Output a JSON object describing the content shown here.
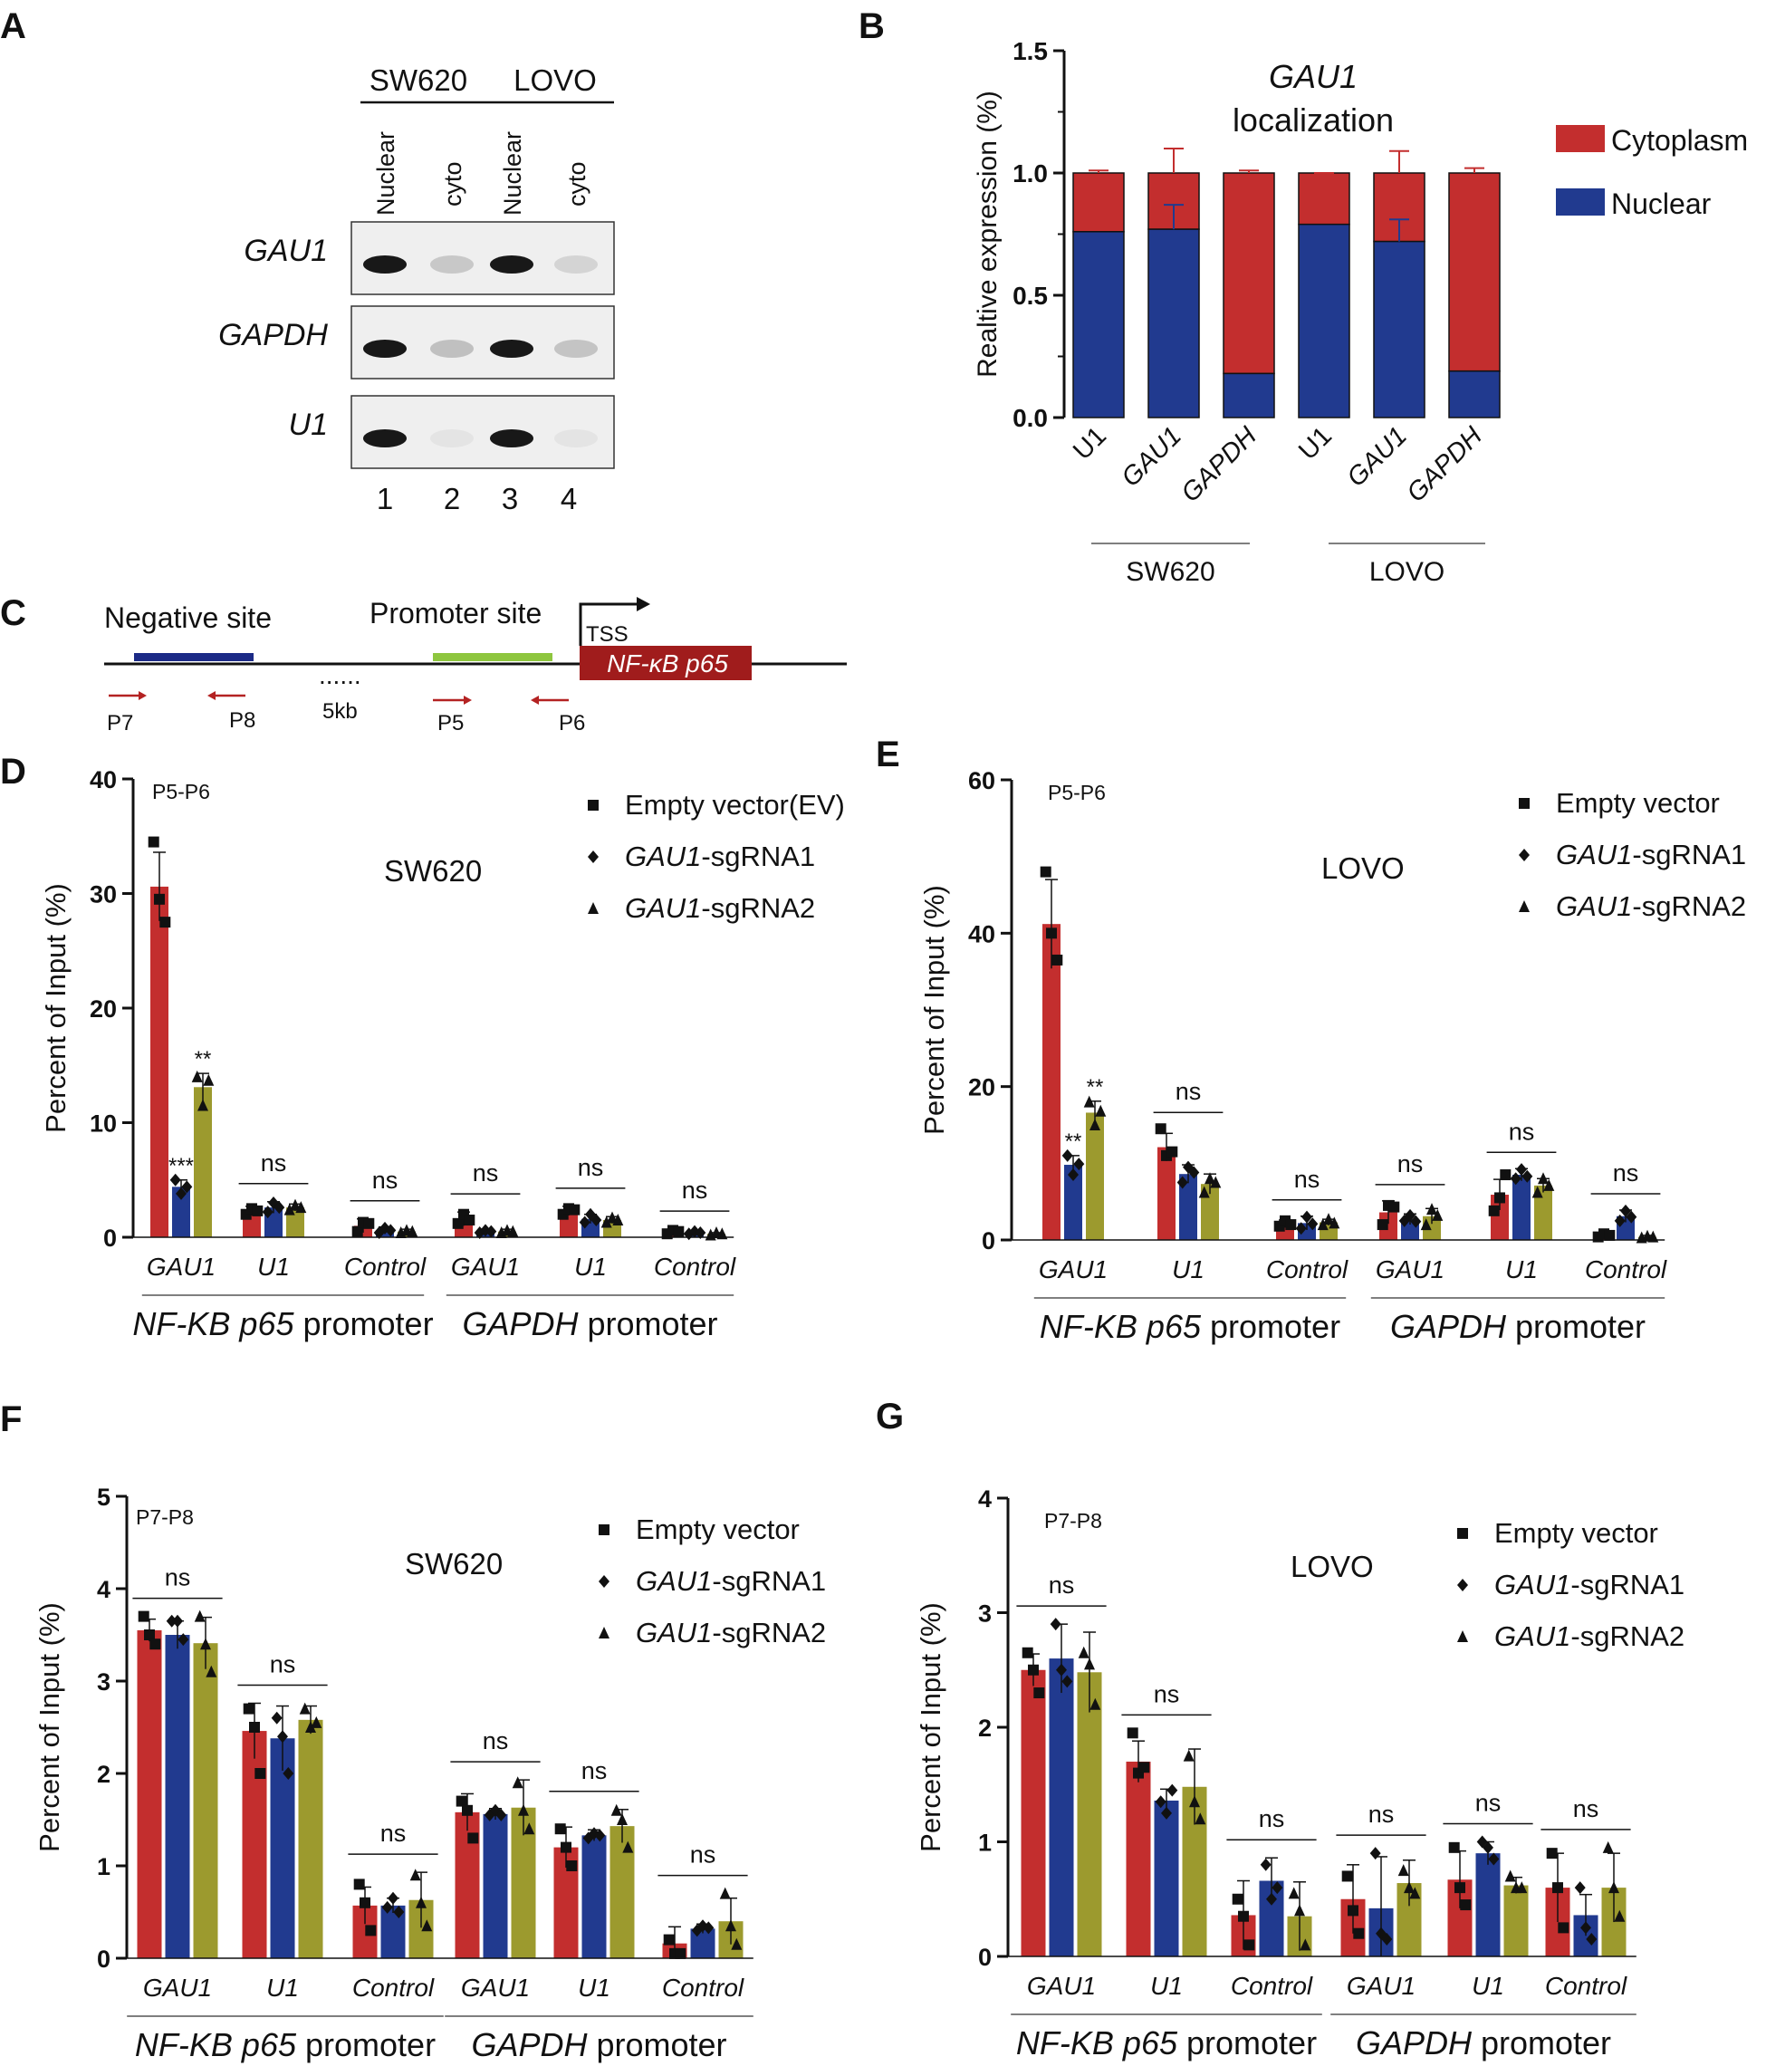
{
  "colors": {
    "red": "#c32e2e",
    "blue": "#213a8f",
    "olive": "#9c9a2e",
    "gel_bg": "#efefef",
    "dark_red": "#a01c1c",
    "navy": "#1c2a86",
    "green": "#8ec63f"
  },
  "panelA": {
    "letter": "A",
    "groups": [
      "SW620",
      "LOVO"
    ],
    "lane_labels": [
      "Nuclear",
      "cyto",
      "Nuclear",
      "cyto"
    ],
    "rows": [
      "GAU1",
      "GAPDH",
      "U1"
    ],
    "lane_numbers": [
      "1",
      "2",
      "3",
      "4"
    ],
    "band_intensity": [
      [
        1,
        0.18,
        1,
        0.12
      ],
      [
        1,
        0.22,
        1,
        0.2
      ],
      [
        1,
        0.05,
        1,
        0.05
      ]
    ]
  },
  "panelB": {
    "letter": "B"
  },
  "panelC": {
    "letter": "C",
    "negative": "Negative site",
    "promoter": "Promoter site",
    "tss": "TSS",
    "gene": "NF-κB p65",
    "dots": "......",
    "dist": "5kb",
    "primers": [
      "P7",
      "P8",
      "P5",
      "P6"
    ]
  },
  "chart_data": [
    {
      "panel": "B",
      "type": "stacked_bar",
      "title_line1": "GAU1",
      "title_line2": "localization",
      "ylabel": "Realtive  expression  (%)",
      "ylim": [
        0,
        1.5
      ],
      "yticks": [
        "0.0",
        "0.5",
        "1.0",
        "1.5"
      ],
      "categories": [
        "U1",
        "GAU1",
        "GAPDH",
        "U1",
        "GAU1",
        "GAPDH"
      ],
      "group_labels": [
        "SW620",
        "LOVO"
      ],
      "series": [
        {
          "name": "Nuclear",
          "values": [
            0.76,
            0.77,
            0.18,
            0.79,
            0.72,
            0.19
          ],
          "errors": [
            0,
            0.1,
            0,
            0,
            0.09,
            0
          ]
        },
        {
          "name": "Cytoplasm",
          "values": [
            0.24,
            0.23,
            0.82,
            0.21,
            0.28,
            0.81
          ],
          "errors": [
            0.01,
            0.1,
            0.01,
            0.0,
            0.09,
            0.02
          ]
        }
      ]
    },
    {
      "panel": "D",
      "type": "bar",
      "letter": "D",
      "primer": "P5-P6",
      "cell_line": "SW620",
      "ylabel": "Percent  of Input  (%)",
      "ylim": [
        0,
        40
      ],
      "yticks": [
        "0",
        "10",
        "20",
        "30",
        "40"
      ],
      "categories": [
        "GAU1",
        "U1",
        "Control",
        "GAU1",
        "U1",
        "Control"
      ],
      "group_labels": [
        {
          "main": "NF-KB p65",
          "rest": " promoter"
        },
        {
          "main": "GAPDH",
          "rest": " promoter"
        }
      ],
      "legend": [
        {
          "main": "Empty vector(EV)",
          "sub": ""
        },
        {
          "main": "GAU1",
          "sub": "-sgRNA1"
        },
        {
          "main": "GAU1",
          "sub": "-sgRNA2"
        }
      ],
      "series": [
        {
          "name": "Empty vector(EV)",
          "values": [
            30.6,
            2.3,
            1.0,
            1.6,
            2.3,
            0.5
          ],
          "errors": [
            3.0,
            0.4,
            0.6,
            0.6,
            0.4,
            0.2
          ],
          "points": [
            [
              34.5,
              29.5,
              27.5
            ],
            [
              2.0,
              2.5,
              2.3
            ],
            [
              0.5,
              1.3,
              1.2
            ],
            [
              1.2,
              2.0,
              1.5
            ],
            [
              2.0,
              2.5,
              2.4
            ],
            [
              0.3,
              0.6,
              0.5
            ]
          ]
        },
        {
          "name": "GAU1-sgRNA1",
          "values": [
            4.4,
            2.6,
            0.6,
            0.5,
            1.6,
            0.4
          ],
          "errors": [
            0.6,
            0.5,
            0.3,
            0.2,
            0.4,
            0.1
          ],
          "points": [
            [
              5.0,
              3.8,
              4.4
            ],
            [
              2.2,
              3.0,
              2.6
            ],
            [
              0.4,
              0.8,
              0.6
            ],
            [
              0.4,
              0.6,
              0.5
            ],
            [
              1.3,
              2.0,
              1.5
            ],
            [
              0.3,
              0.5,
              0.4
            ]
          ]
        },
        {
          "name": "GAU1-sgRNA2",
          "values": [
            13.1,
            2.6,
            0.5,
            0.5,
            1.5,
            0.3
          ],
          "errors": [
            1.2,
            0.3,
            0.2,
            0.2,
            0.3,
            0.1
          ],
          "points": [
            [
              14.0,
              11.5,
              13.7
            ],
            [
              2.4,
              2.8,
              2.6
            ],
            [
              0.4,
              0.6,
              0.5
            ],
            [
              0.4,
              0.6,
              0.5
            ],
            [
              1.3,
              1.7,
              1.5
            ],
            [
              0.2,
              0.4,
              0.3
            ]
          ]
        }
      ],
      "annotations": [
        {
          "cat": 0,
          "s": 1,
          "text": "***"
        },
        {
          "cat": 0,
          "s": 2,
          "text": "**"
        },
        {
          "cat": 1,
          "text": "ns"
        },
        {
          "cat": 2,
          "text": "ns"
        },
        {
          "cat": 3,
          "text": "ns"
        },
        {
          "cat": 4,
          "text": "ns"
        },
        {
          "cat": 5,
          "text": "ns"
        }
      ]
    },
    {
      "panel": "E",
      "type": "bar",
      "letter": "E",
      "primer": "P5-P6",
      "cell_line": "LOVO",
      "ylabel": "Percent  of Input  (%)",
      "ylim": [
        0,
        60
      ],
      "yticks": [
        "0",
        "20",
        "40",
        "60"
      ],
      "categories": [
        "GAU1",
        "U1",
        "Control",
        "GAU1",
        "U1",
        "Control"
      ],
      "group_labels": [
        {
          "main": "NF-KB p65",
          "rest": " promoter"
        },
        {
          "main": "GAPDH",
          "rest": " promoter"
        }
      ],
      "legend": [
        {
          "main": "Empty vector",
          "sub": ""
        },
        {
          "main": "GAU1",
          "sub": "-sgRNA1"
        },
        {
          "main": "GAU1",
          "sub": "-sgRNA2"
        }
      ],
      "series": [
        {
          "name": "Empty vector",
          "values": [
            41.2,
            12.1,
            2.1,
            3.6,
            5.9,
            0.6
          ],
          "errors": [
            5.8,
            1.8,
            0.5,
            1.5,
            2.0,
            0.3
          ],
          "points": [
            [
              48.0,
              40.0,
              36.5
            ],
            [
              14.5,
              11.0,
              11.5
            ],
            [
              1.8,
              2.5,
              2.0
            ],
            [
              2.0,
              4.5,
              4.3
            ],
            [
              3.8,
              5.5,
              8.5
            ],
            [
              0.4,
              0.8,
              0.6
            ]
          ]
        },
        {
          "name": "GAU1-sgRNA1",
          "values": [
            9.8,
            8.6,
            2.2,
            2.7,
            8.5,
            3.1
          ],
          "errors": [
            1.2,
            1.2,
            0.9,
            0.7,
            0.8,
            0.8
          ],
          "points": [
            [
              11.0,
              8.5,
              9.9
            ],
            [
              7.5,
              9.5,
              8.8
            ],
            [
              1.5,
              3.0,
              2.1
            ],
            [
              2.5,
              3.2,
              2.4
            ],
            [
              8.0,
              9.2,
              8.3
            ],
            [
              2.5,
              3.8,
              3.0
            ]
          ]
        },
        {
          "name": "GAU1-sgRNA2",
          "values": [
            16.6,
            7.3,
            2.3,
            3.1,
            7.1,
            0.4
          ],
          "errors": [
            1.5,
            1.3,
            0.4,
            1.0,
            0.9,
            0.2
          ],
          "points": [
            [
              18.0,
              15.0,
              16.8
            ],
            [
              6.2,
              8.0,
              7.5
            ],
            [
              2.0,
              2.7,
              2.2
            ],
            [
              2.0,
              4.0,
              3.2
            ],
            [
              6.2,
              8.0,
              7.1
            ],
            [
              0.3,
              0.5,
              0.4
            ]
          ]
        }
      ],
      "annotations": [
        {
          "cat": 0,
          "s": 1,
          "text": "**"
        },
        {
          "cat": 0,
          "s": 2,
          "text": "**"
        },
        {
          "cat": 1,
          "text": "ns"
        },
        {
          "cat": 2,
          "text": "ns"
        },
        {
          "cat": 3,
          "text": "ns"
        },
        {
          "cat": 4,
          "text": "ns"
        },
        {
          "cat": 5,
          "text": "ns"
        }
      ]
    },
    {
      "panel": "F",
      "type": "bar",
      "letter": "F",
      "primer": "P7-P8",
      "cell_line": "SW620",
      "ylabel": "Percent  of Input  (%)",
      "ylim": [
        0,
        5
      ],
      "yticks": [
        "0",
        "1",
        "2",
        "3",
        "4",
        "5"
      ],
      "categories": [
        "GAU1",
        "U1",
        "Control",
        "GAU1",
        "U1",
        "Control"
      ],
      "group_labels": [
        {
          "main": "NF-KB p65",
          "rest": " promoter"
        },
        {
          "main": "GAPDH",
          "rest": " promoter"
        }
      ],
      "legend": [
        {
          "main": "Empty vector",
          "sub": ""
        },
        {
          "main": "GAU1",
          "sub": "-sgRNA1"
        },
        {
          "main": "GAU1",
          "sub": "-sgRNA2"
        }
      ],
      "series": [
        {
          "name": "Empty vector",
          "values": [
            3.55,
            2.46,
            0.57,
            1.58,
            1.2,
            0.16
          ],
          "errors": [
            0.12,
            0.3,
            0.2,
            0.2,
            0.22,
            0.18
          ],
          "points": [
            [
              3.7,
              3.5,
              3.4
            ],
            [
              2.7,
              2.5,
              2.0
            ],
            [
              0.8,
              0.6,
              0.3
            ],
            [
              1.7,
              1.6,
              1.3
            ],
            [
              1.4,
              1.2,
              1.0
            ],
            [
              0.2,
              0.05,
              0.05
            ]
          ]
        },
        {
          "name": "GAU1-sgRNA1",
          "values": [
            3.5,
            2.38,
            0.57,
            1.56,
            1.33,
            0.32
          ],
          "errors": [
            0.15,
            0.35,
            0.08,
            0.06,
            0.06,
            0.05
          ],
          "points": [
            [
              3.65,
              3.65,
              3.45
            ],
            [
              2.6,
              2.4,
              2.0
            ],
            [
              0.55,
              0.65,
              0.5
            ],
            [
              1.55,
              1.6,
              1.55
            ],
            [
              1.3,
              1.35,
              1.33
            ],
            [
              0.3,
              0.35,
              0.33
            ]
          ]
        },
        {
          "name": "GAU1-sgRNA2",
          "values": [
            3.41,
            2.58,
            0.63,
            1.63,
            1.43,
            0.4
          ],
          "errors": [
            0.28,
            0.15,
            0.3,
            0.3,
            0.18,
            0.25
          ],
          "points": [
            [
              3.7,
              3.4,
              3.1
            ],
            [
              2.7,
              2.5,
              2.55
            ],
            [
              0.9,
              0.6,
              0.35
            ],
            [
              1.9,
              1.6,
              1.4
            ],
            [
              1.6,
              1.5,
              1.2
            ],
            [
              0.7,
              0.35,
              0.15
            ]
          ]
        }
      ],
      "annotations": [
        {
          "cat": 0,
          "text": "ns"
        },
        {
          "cat": 1,
          "text": "ns"
        },
        {
          "cat": 2,
          "text": "ns"
        },
        {
          "cat": 3,
          "text": "ns"
        },
        {
          "cat": 4,
          "text": "ns"
        },
        {
          "cat": 5,
          "text": "ns"
        }
      ]
    },
    {
      "panel": "G",
      "type": "bar",
      "letter": "G",
      "primer": "P7-P8",
      "cell_line": "LOVO",
      "ylabel": "Percent  of Input  (%)",
      "ylim": [
        0,
        4
      ],
      "yticks": [
        "0",
        "1",
        "2",
        "3",
        "4"
      ],
      "categories": [
        "GAU1",
        "U1",
        "Control",
        "GAU1",
        "U1",
        "Control"
      ],
      "group_labels": [
        {
          "main": "NF-KB p65",
          "rest": " promoter"
        },
        {
          "main": "GAPDH",
          "rest": " promoter"
        }
      ],
      "legend": [
        {
          "main": "Empty vector",
          "sub": ""
        },
        {
          "main": "GAU1",
          "sub": "-sgRNA1"
        },
        {
          "main": "GAU1",
          "sub": "-sgRNA2"
        }
      ],
      "series": [
        {
          "name": "Empty vector",
          "values": [
            2.5,
            1.7,
            0.36,
            0.5,
            0.67,
            0.6
          ],
          "errors": [
            0.14,
            0.18,
            0.3,
            0.3,
            0.25,
            0.3
          ],
          "points": [
            [
              2.65,
              2.5,
              2.3
            ],
            [
              1.95,
              1.6,
              1.65
            ],
            [
              0.5,
              0.35,
              0.1
            ],
            [
              0.7,
              0.4,
              0.2
            ],
            [
              0.95,
              0.6,
              0.45
            ],
            [
              0.9,
              0.6,
              0.25
            ]
          ]
        },
        {
          "name": "GAU1-sgRNA1",
          "values": [
            2.6,
            1.36,
            0.66,
            0.42,
            0.9,
            0.36
          ],
          "errors": [
            0.3,
            0.1,
            0.2,
            0.45,
            0.1,
            0.18
          ],
          "points": [
            [
              2.9,
              2.5,
              2.4
            ],
            [
              1.35,
              1.25,
              1.45
            ],
            [
              0.8,
              0.5,
              0.6
            ],
            [
              0.9,
              0.2,
              0.15
            ],
            [
              1.0,
              0.95,
              0.85
            ],
            [
              0.6,
              0.25,
              0.15
            ]
          ]
        },
        {
          "name": "GAU1-sgRNA2",
          "values": [
            2.48,
            1.48,
            0.35,
            0.64,
            0.62,
            0.6
          ],
          "errors": [
            0.35,
            0.33,
            0.3,
            0.2,
            0.07,
            0.3
          ],
          "points": [
            [
              2.65,
              2.55,
              2.2
            ],
            [
              1.75,
              1.35,
              1.2
            ],
            [
              0.55,
              0.4,
              0.1
            ],
            [
              0.75,
              0.6,
              0.55
            ],
            [
              0.7,
              0.6,
              0.6
            ],
            [
              0.95,
              0.6,
              0.35
            ]
          ]
        }
      ],
      "annotations": [
        {
          "cat": 0,
          "text": "ns"
        },
        {
          "cat": 1,
          "text": "ns"
        },
        {
          "cat": 2,
          "text": "ns"
        },
        {
          "cat": 3,
          "text": "ns"
        },
        {
          "cat": 4,
          "text": "ns"
        },
        {
          "cat": 5,
          "text": "ns"
        }
      ]
    }
  ]
}
